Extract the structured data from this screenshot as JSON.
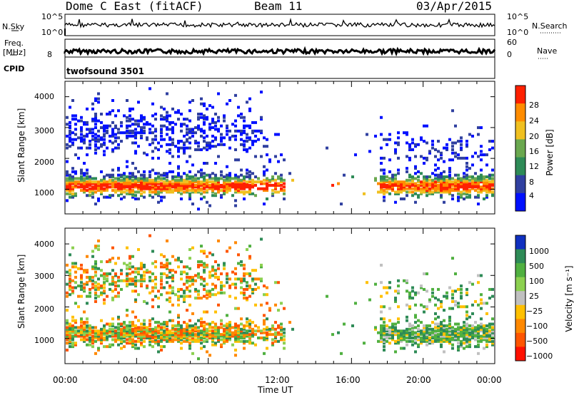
{
  "header": {
    "station": "Dome C East (fitACF)",
    "beam": "Beam 11",
    "date": "03/Apr/2015"
  },
  "strips": {
    "nsky_label": "N.Sky",
    "nsky_ticks": [
      "10^5",
      "10^0"
    ],
    "nsearch_label": "N.Search",
    "freq_label": "Freq.",
    "freq_unit": "[MHz]",
    "freq_ticks": [
      "8"
    ],
    "nave_ticks": [
      "60",
      "0"
    ],
    "nave_label": "Nave",
    "cpid_label": "CPID",
    "cpid_value": "twofsound 3501"
  },
  "chart_data": [
    {
      "type": "heatmap",
      "name": "power",
      "ylabel": "Slant Range [km]",
      "ylim": [
        200,
        4500
      ],
      "yticks": [
        "1000",
        "2000",
        "3000",
        "4000"
      ],
      "colorbar_label": "Power [dB]",
      "colorbar_ticks": [
        "4",
        "8",
        "12",
        "16",
        "20",
        "24",
        "28"
      ],
      "colors": [
        "#0010ff",
        "#3040a0",
        "#2e8b57",
        "#6aa84f",
        "#f0c020",
        "#ff8c00",
        "#ff2000"
      ],
      "main_band_km": [
        700,
        1600
      ],
      "peak_db": 30
    },
    {
      "type": "heatmap",
      "name": "velocity",
      "ylabel": "Slant Range [km]",
      "ylim": [
        200,
        4500
      ],
      "yticks": [
        "1000",
        "2000",
        "3000",
        "4000"
      ],
      "colorbar_label": "Velocity [m s⁻¹]",
      "colorbar_ticks": [
        "1000",
        "500",
        "100",
        "25",
        "−25",
        "−100",
        "−500",
        "−1000"
      ],
      "colors": [
        "#1030c0",
        "#2e8b57",
        "#50b040",
        "#8cd050",
        "#c0c0c0",
        "#ffc000",
        "#ff8800",
        "#ff5500",
        "#ff1000"
      ]
    }
  ],
  "xaxis": {
    "label": "Time UT",
    "ticks": [
      "00:00",
      "04:00",
      "08:00",
      "12:00",
      "16:00",
      "20:00",
      "00:00"
    ]
  }
}
